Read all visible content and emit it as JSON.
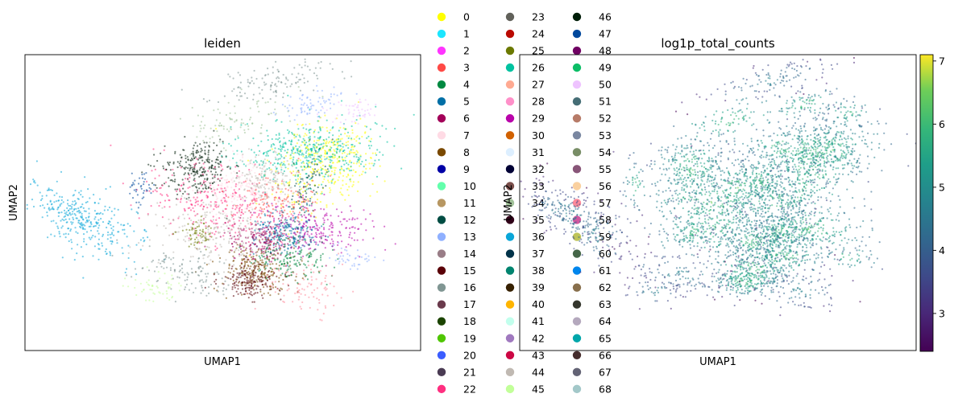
{
  "chart_data": [
    {
      "type": "scatter",
      "embedding": "UMAP",
      "title": "leiden",
      "xlabel": "UMAP1",
      "ylabel": "UMAP2",
      "legend": {
        "placement": "right",
        "columns": 3,
        "entries": [
          {
            "label": "0",
            "color": "#ffff00"
          },
          {
            "label": "1",
            "color": "#1ce6ff"
          },
          {
            "label": "2",
            "color": "#ff34ff"
          },
          {
            "label": "3",
            "color": "#ff4a46"
          },
          {
            "label": "4",
            "color": "#008941"
          },
          {
            "label": "5",
            "color": "#006fa6"
          },
          {
            "label": "6",
            "color": "#a30059"
          },
          {
            "label": "7",
            "color": "#ffdbe5"
          },
          {
            "label": "8",
            "color": "#7a4900"
          },
          {
            "label": "9",
            "color": "#0000a6"
          },
          {
            "label": "10",
            "color": "#63ffac"
          },
          {
            "label": "11",
            "color": "#b79762"
          },
          {
            "label": "12",
            "color": "#004d43"
          },
          {
            "label": "13",
            "color": "#8fb0ff"
          },
          {
            "label": "14",
            "color": "#997d87"
          },
          {
            "label": "15",
            "color": "#5a0007"
          },
          {
            "label": "16",
            "color": "#809693"
          },
          {
            "label": "17",
            "color": "#6a3a4c"
          },
          {
            "label": "18",
            "color": "#1b4400"
          },
          {
            "label": "19",
            "color": "#4fc601"
          },
          {
            "label": "20",
            "color": "#3b5dff"
          },
          {
            "label": "21",
            "color": "#4a3b53"
          },
          {
            "label": "22",
            "color": "#ff2f80"
          },
          {
            "label": "23",
            "color": "#61615a"
          },
          {
            "label": "24",
            "color": "#ba0900"
          },
          {
            "label": "25",
            "color": "#6b7900"
          },
          {
            "label": "26",
            "color": "#00c2a0"
          },
          {
            "label": "27",
            "color": "#ffaa92"
          },
          {
            "label": "28",
            "color": "#ff90c9"
          },
          {
            "label": "29",
            "color": "#b903aa"
          },
          {
            "label": "30",
            "color": "#d16100"
          },
          {
            "label": "31",
            "color": "#ddefff"
          },
          {
            "label": "32",
            "color": "#000035"
          },
          {
            "label": "33",
            "color": "#7b4f4b"
          },
          {
            "label": "34",
            "color": "#a1c299"
          },
          {
            "label": "35",
            "color": "#300018"
          },
          {
            "label": "36",
            "color": "#0aa6d8"
          },
          {
            "label": "37",
            "color": "#013349"
          },
          {
            "label": "38",
            "color": "#00846f"
          },
          {
            "label": "39",
            "color": "#372101"
          },
          {
            "label": "40",
            "color": "#ffb500"
          },
          {
            "label": "41",
            "color": "#c2ffed"
          },
          {
            "label": "42",
            "color": "#a079bf"
          },
          {
            "label": "43",
            "color": "#cc0744"
          },
          {
            "label": "44",
            "color": "#c0b9b2"
          },
          {
            "label": "45",
            "color": "#c2ff99"
          },
          {
            "label": "46",
            "color": "#001e09"
          },
          {
            "label": "47",
            "color": "#00489c"
          },
          {
            "label": "48",
            "color": "#6f0062"
          },
          {
            "label": "49",
            "color": "#0cbd66"
          },
          {
            "label": "50",
            "color": "#eec3ff"
          },
          {
            "label": "51",
            "color": "#456d75"
          },
          {
            "label": "52",
            "color": "#b77b68"
          },
          {
            "label": "53",
            "color": "#7a87a1"
          },
          {
            "label": "54",
            "color": "#788d66"
          },
          {
            "label": "55",
            "color": "#885578"
          },
          {
            "label": "56",
            "color": "#fad09f"
          },
          {
            "label": "57",
            "color": "#ff8a9a"
          },
          {
            "label": "58",
            "color": "#d157a0"
          },
          {
            "label": "59",
            "color": "#bec459"
          },
          {
            "label": "60",
            "color": "#456648"
          },
          {
            "label": "61",
            "color": "#0086ed"
          },
          {
            "label": "62",
            "color": "#886f4c"
          },
          {
            "label": "63",
            "color": "#34362d"
          },
          {
            "label": "64",
            "color": "#b4a8bd"
          },
          {
            "label": "65",
            "color": "#00a6aa"
          },
          {
            "label": "66",
            "color": "#452c2c"
          },
          {
            "label": "67",
            "color": "#636375"
          },
          {
            "label": "68",
            "color": "#a3c8c9"
          }
        ]
      }
    },
    {
      "type": "scatter",
      "embedding": "UMAP",
      "title": "log1p_total_counts",
      "xlabel": "UMAP1",
      "ylabel": "UMAP2",
      "colorbar": {
        "colormap": "viridis",
        "range": [
          2.4,
          7.1
        ],
        "ticks": [
          "3",
          "4",
          "5",
          "6",
          "7"
        ],
        "tick_values": [
          3,
          4,
          5,
          6,
          7
        ]
      }
    }
  ]
}
